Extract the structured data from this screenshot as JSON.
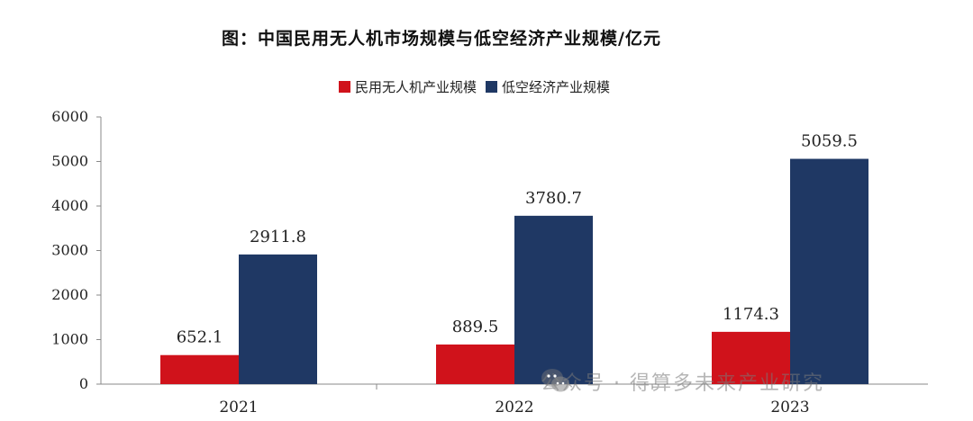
{
  "chart_data": {
    "type": "bar",
    "title": "图：中国民用无人机市场规模与低空经济产业规模/亿元",
    "categories": [
      "2021",
      "2022",
      "2023"
    ],
    "series": [
      {
        "name": "民用无人机产业规模",
        "values": [
          652.1,
          889.5,
          1174.3
        ],
        "labels": [
          "652.1",
          "889.5",
          "1174.3"
        ],
        "color": "#d0121b"
      },
      {
        "name": "低空经济产业规模",
        "values": [
          2911.8,
          3780.7,
          5059.5
        ],
        "labels": [
          "2911.8",
          "3780.7",
          "5059.5"
        ],
        "color": "#1f3864"
      }
    ],
    "ylim": [
      0,
      6000
    ],
    "yticks": [
      "0",
      "1000",
      "2000",
      "3000",
      "4000",
      "5000",
      "6000"
    ],
    "xlabel": "",
    "ylabel": "",
    "legend": "top",
    "grid": false
  },
  "watermark": {
    "text": "公众号 · 得算多未来产业研究",
    "icon": "wechat-icon"
  }
}
